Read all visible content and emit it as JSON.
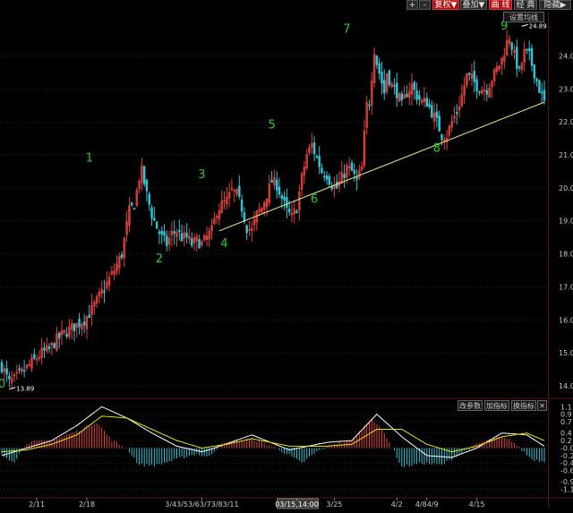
{
  "toolbar": {
    "plus": "+",
    "minus": "-",
    "fuquan": "复权▼",
    "diejia": "叠加▼",
    "quxian": "曲 线",
    "jingdian": "经 典",
    "yincang": "隐藏▶",
    "settings": "设置均线"
  },
  "indicator_buttons": {
    "change_params": "改参数",
    "add_indicator": "加指标",
    "switch_indicator": "换指标",
    "close": "✕"
  },
  "colors": {
    "background": "#000000",
    "up": "#e0403a",
    "down": "#2ec4d6",
    "grid": "#2a2a2a",
    "wave_label": "#22cc22",
    "trendline": "#e6e67a",
    "dif_line": "#ffffff",
    "dea_line": "#e6e600",
    "axis_text": "#c8c8c8"
  },
  "chart_data": [
    {
      "type": "candlestick",
      "ylim": [
        13.7,
        25.1
      ],
      "yticks": [
        "24.0",
        "23.0",
        "22.0",
        "21.0",
        "20.0",
        "19.0",
        "18.0",
        "17.0",
        "16.0",
        "15.0",
        "14.0"
      ],
      "ytick_values": [
        24,
        23,
        22,
        21,
        20,
        19,
        18,
        17,
        16,
        15,
        14
      ],
      "close_path": [
        [
          0,
          14.6
        ],
        [
          3,
          14.1
        ],
        [
          5,
          14.2
        ],
        [
          8,
          14.4
        ],
        [
          12,
          14.7
        ],
        [
          16,
          15.0
        ],
        [
          19,
          15.1
        ],
        [
          22,
          15.4
        ],
        [
          25,
          15.6
        ],
        [
          29,
          15.8
        ],
        [
          33,
          16.0
        ],
        [
          36,
          16.3
        ],
        [
          39,
          16.7
        ],
        [
          42,
          17.1
        ],
        [
          45,
          17.5
        ],
        [
          48,
          18.0
        ],
        [
          51,
          19.3
        ],
        [
          53,
          19.5
        ],
        [
          55,
          20.3
        ],
        [
          56,
          20.5
        ],
        [
          58,
          19.8
        ],
        [
          60,
          19.2
        ],
        [
          62,
          18.8
        ],
        [
          64,
          18.5
        ],
        [
          66,
          18.3
        ],
        [
          68,
          18.6
        ],
        [
          70,
          18.7
        ],
        [
          72,
          18.5
        ],
        [
          74,
          18.5
        ],
        [
          76,
          18.3
        ],
        [
          78,
          18.4
        ],
        [
          80,
          18.3
        ],
        [
          82,
          18.5
        ],
        [
          84,
          18.7
        ],
        [
          86,
          19.3
        ],
        [
          88,
          19.5
        ],
        [
          90,
          19.6
        ],
        [
          92,
          19.9
        ],
        [
          94,
          19.8
        ],
        [
          96,
          19.4
        ],
        [
          98,
          18.8
        ],
        [
          100,
          18.7
        ],
        [
          102,
          19.2
        ],
        [
          104,
          19.4
        ],
        [
          106,
          19.8
        ],
        [
          108,
          20.2
        ],
        [
          110,
          20.1
        ],
        [
          112,
          19.7
        ],
        [
          114,
          19.3
        ],
        [
          116,
          19.1
        ],
        [
          118,
          19.4
        ],
        [
          120,
          20.3
        ],
        [
          122,
          21.0
        ],
        [
          124,
          21.3
        ],
        [
          126,
          20.9
        ],
        [
          128,
          20.5
        ],
        [
          130,
          20.4
        ],
        [
          132,
          20.1
        ],
        [
          134,
          20.0
        ],
        [
          136,
          20.3
        ],
        [
          138,
          20.6
        ],
        [
          140,
          20.5
        ],
        [
          142,
          20.2
        ],
        [
          144,
          20.6
        ],
        [
          145,
          21.6
        ],
        [
          146,
          22.5
        ],
        [
          147,
          22.6
        ],
        [
          148,
          23.4
        ],
        [
          149,
          24.2
        ],
        [
          150,
          23.8
        ],
        [
          152,
          23.2
        ],
        [
          153,
          22.9
        ],
        [
          154,
          23.5
        ],
        [
          156,
          23.1
        ],
        [
          158,
          22.9
        ],
        [
          160,
          22.5
        ],
        [
          162,
          22.9
        ],
        [
          164,
          23.1
        ],
        [
          166,
          22.8
        ],
        [
          168,
          22.6
        ],
        [
          170,
          22.6
        ],
        [
          172,
          22.3
        ],
        [
          174,
          22.0
        ],
        [
          176,
          21.6
        ],
        [
          178,
          21.6
        ],
        [
          180,
          22.0
        ],
        [
          182,
          22.3
        ],
        [
          184,
          22.8
        ],
        [
          186,
          23.4
        ],
        [
          188,
          23.3
        ],
        [
          190,
          23.1
        ],
        [
          192,
          23.0
        ],
        [
          194,
          23.0
        ],
        [
          196,
          23.3
        ],
        [
          198,
          23.6
        ],
        [
          200,
          23.9
        ],
        [
          202,
          24.4
        ],
        [
          203,
          24.6
        ],
        [
          205,
          24.0
        ],
        [
          207,
          23.5
        ],
        [
          209,
          24.1
        ],
        [
          211,
          24.0
        ],
        [
          213,
          23.5
        ],
        [
          215,
          23.0
        ],
        [
          217,
          22.6
        ]
      ],
      "wave_labels": [
        {
          "label": "0",
          "x": 0,
          "y": 13.95
        },
        {
          "label": "1",
          "x": 35,
          "y": 20.8
        },
        {
          "label": "2",
          "x": 63,
          "y": 17.75
        },
        {
          "label": "3",
          "x": 80,
          "y": 20.3
        },
        {
          "label": "4",
          "x": 89,
          "y": 18.2
        },
        {
          "label": "5",
          "x": 108,
          "y": 21.8
        },
        {
          "label": "6",
          "x": 125,
          "y": 19.55
        },
        {
          "label": "7",
          "x": 138,
          "y": 24.7
        },
        {
          "label": "8",
          "x": 174,
          "y": 21.1
        },
        {
          "label": "9",
          "x": 201,
          "y": 24.8
        }
      ],
      "annotations": [
        {
          "text": "13.89",
          "x": 4,
          "y": 13.9
        },
        {
          "text": "24.89",
          "x": 209,
          "y": 24.9
        }
      ],
      "trendline": [
        [
          87,
          18.7
        ],
        [
          217,
          22.6
        ]
      ]
    },
    {
      "type": "histogram+line",
      "ylim": [
        -1.3,
        1.25
      ],
      "yticks": [
        "1.1",
        "0.9",
        "0.7",
        "0.4",
        "0.2",
        "-0.0",
        "-0.2",
        "-0.4",
        "-0.6",
        "-0.9",
        "-1.1"
      ],
      "ytick_values": [
        1.1,
        0.9,
        0.7,
        0.4,
        0.2,
        0.0,
        -0.2,
        -0.4,
        -0.6,
        -0.9,
        -1.1
      ],
      "series": [
        {
          "values_path": [
            [
              0,
              -0.2
            ],
            [
              10,
              0.0
            ],
            [
              20,
              0.2
            ],
            [
              30,
              0.6
            ],
            [
              40,
              1.1
            ],
            [
              50,
              0.8
            ],
            [
              60,
              0.4
            ],
            [
              70,
              0.05
            ],
            [
              80,
              -0.1
            ],
            [
              85,
              0.0
            ],
            [
              100,
              0.35
            ],
            [
              115,
              -0.05
            ],
            [
              130,
              0.15
            ],
            [
              140,
              0.2
            ],
            [
              150,
              0.9
            ],
            [
              160,
              0.3
            ],
            [
              170,
              -0.2
            ],
            [
              180,
              -0.25
            ],
            [
              190,
              0.0
            ],
            [
              200,
              0.4
            ],
            [
              210,
              0.35
            ],
            [
              217,
              0.05
            ]
          ]
        },
        {
          "values_path": [
            [
              0,
              -0.1
            ],
            [
              10,
              -0.05
            ],
            [
              20,
              0.1
            ],
            [
              30,
              0.35
            ],
            [
              40,
              0.85
            ],
            [
              50,
              0.8
            ],
            [
              60,
              0.5
            ],
            [
              70,
              0.2
            ],
            [
              80,
              0.0
            ],
            [
              90,
              0.1
            ],
            [
              100,
              0.25
            ],
            [
              115,
              0.05
            ],
            [
              130,
              0.05
            ],
            [
              140,
              0.1
            ],
            [
              150,
              0.5
            ],
            [
              160,
              0.5
            ],
            [
              170,
              0.1
            ],
            [
              180,
              -0.1
            ],
            [
              190,
              0.05
            ],
            [
              200,
              0.3
            ],
            [
              210,
              0.4
            ],
            [
              217,
              0.2
            ]
          ]
        }
      ],
      "hist_path": [
        [
          0,
          -0.2
        ],
        [
          5,
          -0.35
        ],
        [
          10,
          0.15
        ],
        [
          20,
          0.2
        ],
        [
          30,
          0.45
        ],
        [
          38,
          0.7
        ],
        [
          44,
          0.2
        ],
        [
          50,
          0.0
        ],
        [
          55,
          -0.45
        ],
        [
          62,
          -0.45
        ],
        [
          70,
          -0.3
        ],
        [
          78,
          -0.15
        ],
        [
          82,
          -0.25
        ],
        [
          88,
          0.1
        ],
        [
          100,
          0.25
        ],
        [
          110,
          0.0
        ],
        [
          120,
          -0.4
        ],
        [
          126,
          -0.1
        ],
        [
          132,
          0.1
        ],
        [
          140,
          0.2
        ],
        [
          148,
          0.8
        ],
        [
          154,
          0.3
        ],
        [
          160,
          -0.5
        ],
        [
          168,
          -0.4
        ],
        [
          176,
          -0.45
        ],
        [
          182,
          -0.2
        ],
        [
          190,
          0.1
        ],
        [
          198,
          0.3
        ],
        [
          204,
          0.2
        ],
        [
          212,
          -0.3
        ],
        [
          217,
          -0.35
        ]
      ]
    }
  ],
  "x_axis": {
    "labels": [
      {
        "text": "2/11",
        "x": 14
      },
      {
        "text": "2/18",
        "x": 34
      },
      {
        "text": "3/43/53/63/73/83/11",
        "x": 80
      },
      {
        "text": "03/15,14:00",
        "x": 118,
        "highlight": true
      },
      {
        "text": "3/25",
        "x": 133
      },
      {
        "text": "4/2",
        "x": 158
      },
      {
        "text": "4/84/9",
        "x": 170
      },
      {
        "text": "4/15",
        "x": 190
      }
    ]
  }
}
